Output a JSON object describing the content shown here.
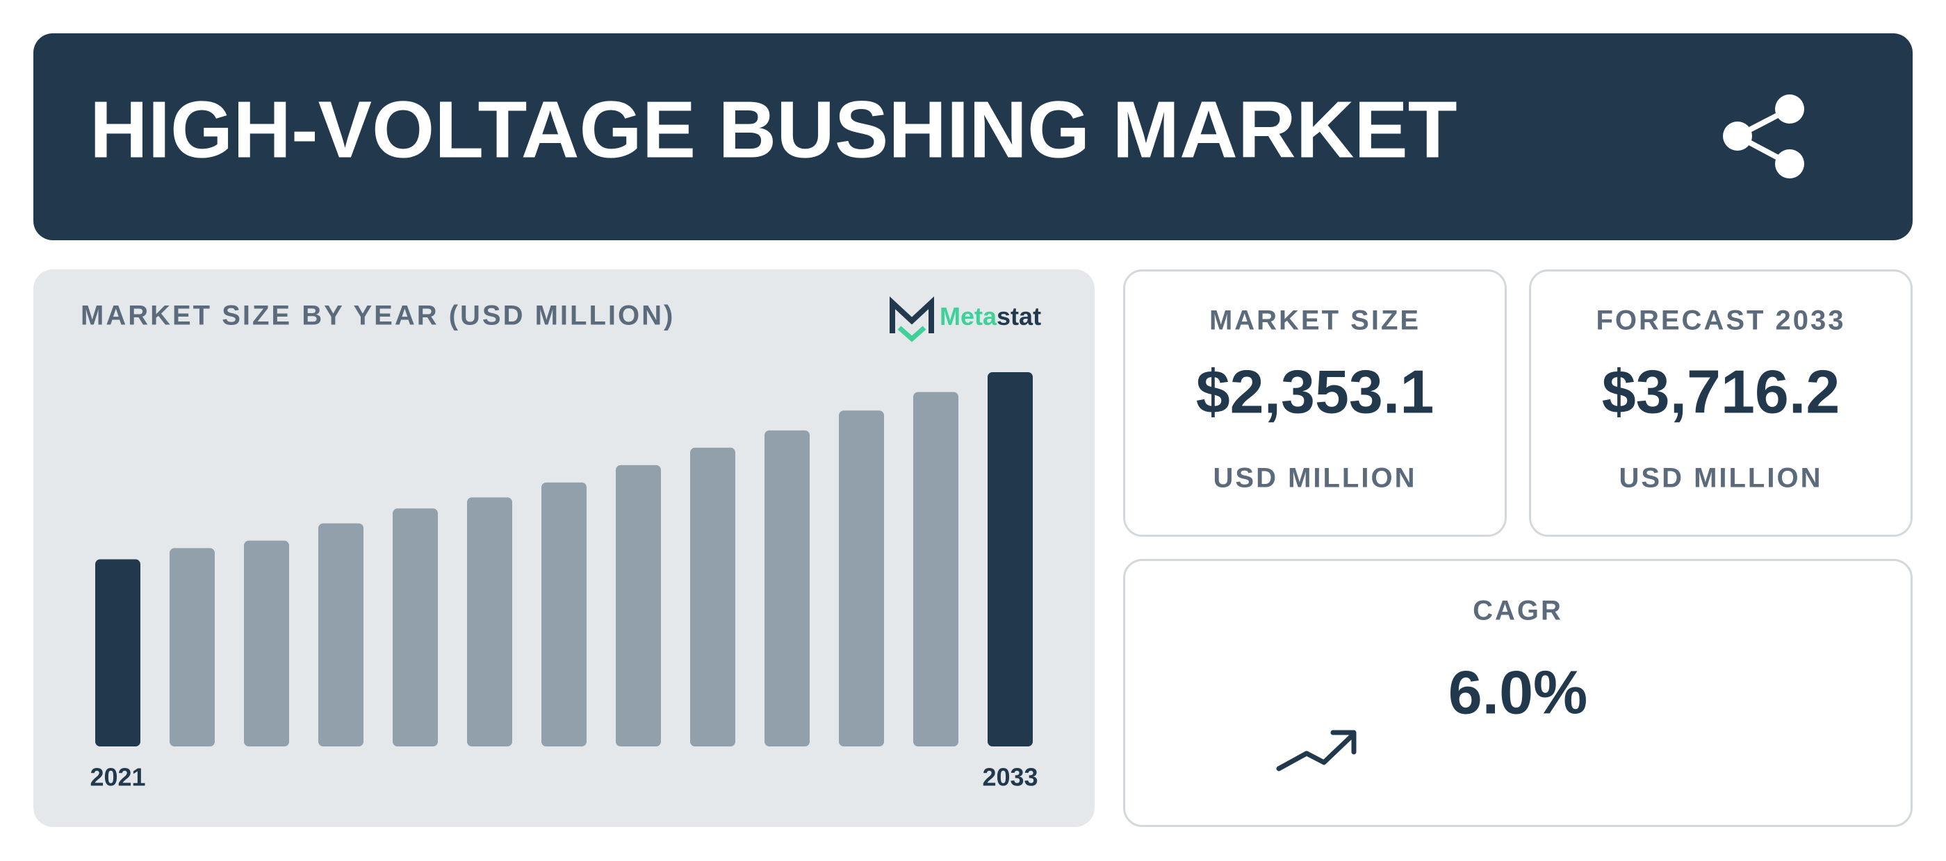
{
  "header": {
    "title": "HIGH-VOLTAGE BUSHING MARKET"
  },
  "chart_data": {
    "type": "bar",
    "title": "MARKET SIZE BY YEAR (USD MILLION)",
    "categories": [
      "2021",
      null,
      null,
      null,
      null,
      null,
      null,
      null,
      null,
      null,
      null,
      null,
      "2033"
    ],
    "values": [
      1858,
      1969,
      2043,
      2215,
      2363,
      2473,
      2621,
      2793,
      2966,
      3138,
      3335,
      3519,
      3716.2
    ],
    "colors": [
      "#21384d",
      "#91a0ab",
      "#91a0ab",
      "#91a0ab",
      "#91a0ab",
      "#91a0ab",
      "#91a0ab",
      "#91a0ab",
      "#91a0ab",
      "#91a0ab",
      "#91a0ab",
      "#91a0ab",
      "#21384d"
    ]
  },
  "logo": {
    "parts": [
      "Meta",
      "stat"
    ]
  },
  "market_size": {
    "label": "MARKET SIZE",
    "value": "$2,353.1",
    "unit": "USD MILLION"
  },
  "forecast": {
    "label": "FORECAST 2033",
    "value": "$3,716.2",
    "unit": "USD MILLION"
  },
  "cagr": {
    "label": "CAGR",
    "value": "6.0%"
  }
}
